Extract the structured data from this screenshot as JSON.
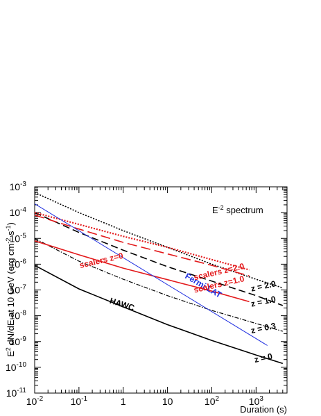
{
  "chart_data": {
    "type": "line",
    "title": "",
    "xlabel": "Duration (s)",
    "ylabel_parts": {
      "base": "E",
      "sup1": "2",
      "mid": " dN/dE at 10 GeV (erg cm",
      "sup2": "-2",
      "mid2": " s",
      "sup3": "-1",
      "end": ")"
    },
    "xscale": "log",
    "yscale": "log",
    "xlim": [
      0.01,
      5000
    ],
    "ylim": [
      1e-11,
      0.001
    ],
    "grid": false,
    "x_ticks": [
      {
        "value": 0.01,
        "base": "10",
        "exp": "-2"
      },
      {
        "value": 0.1,
        "base": "10",
        "exp": "-1"
      },
      {
        "value": 1,
        "base": "1",
        "exp": ""
      },
      {
        "value": 10,
        "base": "10",
        "exp": ""
      },
      {
        "value": 100,
        "base": "10",
        "exp": "2"
      },
      {
        "value": 1000,
        "base": "10",
        "exp": "3"
      }
    ],
    "y_ticks": [
      {
        "value": 1e-11,
        "base": "10",
        "exp": "-11"
      },
      {
        "value": 1e-10,
        "base": "10",
        "exp": "-10"
      },
      {
        "value": 1e-09,
        "base": "10",
        "exp": "-9"
      },
      {
        "value": 1e-08,
        "base": "10",
        "exp": "-8"
      },
      {
        "value": 1e-07,
        "base": "10",
        "exp": "-7"
      },
      {
        "value": 1e-06,
        "base": "10",
        "exp": "-6"
      },
      {
        "value": 1e-05,
        "base": "10",
        "exp": "-5"
      },
      {
        "value": 0.0001,
        "base": "10",
        "exp": "-4"
      },
      {
        "value": 0.001,
        "base": "10",
        "exp": "-3"
      }
    ],
    "legend_note": {
      "base": "E",
      "sup": "-2",
      "rest": " spectrum"
    },
    "series": [
      {
        "id": "hawc-z0",
        "color": "#000000",
        "dash": "",
        "width": 1.6,
        "points": [
          [
            0.01,
            9e-07
          ],
          [
            0.1,
            1.1e-07
          ],
          [
            1,
            2.2e-08
          ],
          [
            10,
            4.5e-09
          ],
          [
            100,
            1.1e-09
          ],
          [
            1000,
            3e-10
          ],
          [
            4000,
            1.4e-10
          ]
        ]
      },
      {
        "id": "hawc-z03",
        "color": "#000000",
        "dash": "6,2,1.5,2",
        "width": 1.2,
        "points": [
          [
            0.01,
            1e-05
          ],
          [
            0.1,
            1.3e-06
          ],
          [
            1,
            2.6e-07
          ],
          [
            10,
            6e-08
          ],
          [
            100,
            1.6e-08
          ],
          [
            1000,
            5e-09
          ],
          [
            4000,
            2.5e-09
          ]
        ]
      },
      {
        "id": "hawc-z10",
        "color": "#000000",
        "dash": "10,5",
        "width": 1.6,
        "points": [
          [
            0.01,
            0.0001
          ],
          [
            0.1,
            1.7e-05
          ],
          [
            1,
            3.5e-06
          ],
          [
            10,
            8e-07
          ],
          [
            100,
            2.2e-07
          ],
          [
            1000,
            6e-08
          ],
          [
            4000,
            2.5e-08
          ]
        ]
      },
      {
        "id": "hawc-z20",
        "color": "#000000",
        "dash": "2,2",
        "width": 1.6,
        "points": [
          [
            0.01,
            0.0006
          ],
          [
            0.1,
            0.0001
          ],
          [
            1,
            2e-05
          ],
          [
            10,
            4.5e-06
          ],
          [
            100,
            1e-06
          ],
          [
            1000,
            2.6e-07
          ],
          [
            4000,
            1.2e-07
          ]
        ]
      },
      {
        "id": "scalers-z0",
        "color": "#e31a1c",
        "dash": "",
        "width": 1.6,
        "points": [
          [
            0.01,
            8e-06
          ],
          [
            0.1,
            2.3e-06
          ],
          [
            1,
            7e-07
          ],
          [
            10,
            2.5e-07
          ],
          [
            100,
            9e-08
          ],
          [
            700,
            3.5e-08
          ]
        ]
      },
      {
        "id": "scalers-z10",
        "color": "#e31a1c",
        "dash": "14,6",
        "width": 1.6,
        "points": [
          [
            0.01,
            8e-05
          ],
          [
            0.1,
            2.3e-05
          ],
          [
            1,
            7e-06
          ],
          [
            10,
            2.5e-06
          ],
          [
            100,
            9e-07
          ],
          [
            700,
            3.5e-07
          ]
        ]
      },
      {
        "id": "scalers-z20",
        "color": "#e31a1c",
        "dash": "2,2",
        "width": 2.2,
        "points": [
          [
            0.01,
            0.0001
          ],
          [
            0.1,
            3.5e-05
          ],
          [
            1,
            1.2e-05
          ],
          [
            10,
            4.5e-06
          ],
          [
            100,
            1.5e-06
          ],
          [
            700,
            6e-07
          ]
        ]
      },
      {
        "id": "fermi-lat",
        "color": "#1f2fe0",
        "dash": "",
        "width": 1.0,
        "points": [
          [
            0.01,
            0.00022
          ],
          [
            1800,
            7e-10
          ]
        ]
      }
    ],
    "annotations": [
      {
        "id": "annot-z20",
        "text": "z = 2.0",
        "color": "#000000",
        "x": 1500,
        "y": 1.1e-07,
        "angle": -12
      },
      {
        "id": "annot-z10",
        "text": "z = 1.0",
        "color": "#000000",
        "x": 1500,
        "y": 2.8e-08,
        "angle": -12
      },
      {
        "id": "annot-z03",
        "text": "z = 0.3",
        "color": "#000000",
        "x": 1500,
        "y": 2.6e-09,
        "angle": -12
      },
      {
        "id": "annot-z0",
        "text": "z = 0",
        "color": "#000000",
        "x": 1500,
        "y": 1.8e-10,
        "angle": -12
      },
      {
        "id": "annot-hawc",
        "text": "HAWC",
        "color": "#000000",
        "x": 0.9,
        "y": 2.2e-08,
        "angle": 18
      },
      {
        "id": "annot-fermi",
        "text": "Fermi LAT",
        "color": "#1f2fe0",
        "x": 60,
        "y": 1.2e-07,
        "angle": 30
      },
      {
        "id": "annot-scalers-z0",
        "text": "scalers z=0",
        "color": "#e31a1c",
        "x": 0.33,
        "y": 1.1e-06,
        "angle": -13
      },
      {
        "id": "annot-scalers-z20",
        "text": "scalers z=2.0",
        "color": "#e31a1c",
        "x": 150,
        "y": 4e-07,
        "angle": -13
      },
      {
        "id": "annot-scalers-z10",
        "text": "scalers z=1.0",
        "color": "#e31a1c",
        "x": 150,
        "y": 1.3e-07,
        "angle": -13
      }
    ]
  }
}
